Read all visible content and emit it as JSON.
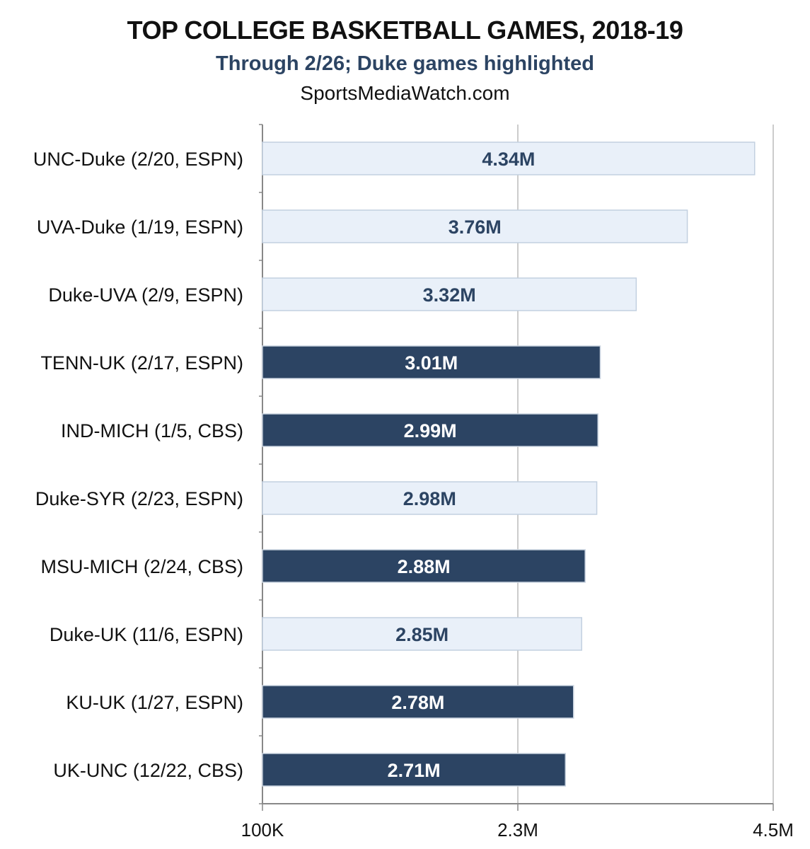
{
  "header": {
    "title": "TOP COLLEGE BASKETBALL GAMES, 2018-19",
    "subtitle": "Through 2/26; Duke games highlighted",
    "source": "SportsMediaWatch.com"
  },
  "colors": {
    "highlight_fill": "#e9f0f9",
    "highlight_stroke": "#c3d0e0",
    "highlight_text": "#2c4463",
    "normal_fill": "#2c4463",
    "normal_text": "#ffffff",
    "axis": "#888888",
    "grid": "#bbbbbb"
  },
  "chart_data": {
    "type": "bar",
    "orientation": "horizontal",
    "title": "TOP COLLEGE BASKETBALL GAMES, 2018-19",
    "subtitle": "Through 2/26; Duke games highlighted",
    "xlabel": "",
    "ylabel": "",
    "xlim": [
      100000,
      4500000
    ],
    "grid": true,
    "x_ticks": [
      {
        "value": 100000,
        "label": "100K"
      },
      {
        "value": 2300000,
        "label": "2.3M"
      },
      {
        "value": 4500000,
        "label": "4.5M"
      }
    ],
    "categories": [
      "UNC-Duke (2/20, ESPN)",
      "UVA-Duke (1/19, ESPN)",
      "Duke-UVA (2/9, ESPN)",
      "TENN-UK (2/17, ESPN)",
      "IND-MICH (1/5, CBS)",
      "Duke-SYR (2/23, ESPN)",
      "MSU-MICH (2/24, CBS)",
      "Duke-UK (11/6, ESPN)",
      "KU-UK (1/27, ESPN)",
      "UK-UNC (12/22, CBS)"
    ],
    "values": [
      4340000,
      3760000,
      3320000,
      3010000,
      2990000,
      2980000,
      2880000,
      2850000,
      2780000,
      2710000
    ],
    "value_labels": [
      "4.34M",
      "3.76M",
      "3.32M",
      "3.01M",
      "2.99M",
      "2.98M",
      "2.88M",
      "2.85M",
      "2.78M",
      "2.71M"
    ],
    "duke_game": [
      true,
      true,
      true,
      false,
      false,
      true,
      false,
      true,
      false,
      false
    ]
  }
}
